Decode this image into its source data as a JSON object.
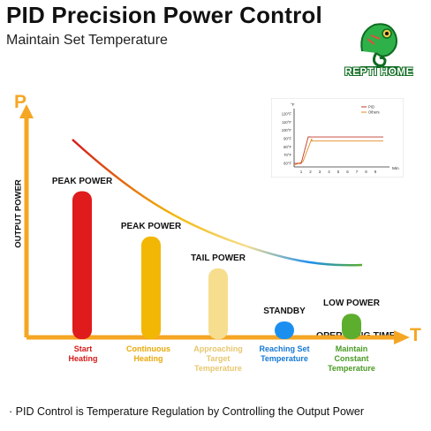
{
  "title": "PID Precision Power Control",
  "subtitle": "Maintain Set Temperature",
  "logo": {
    "text": "REPTI HOME",
    "icon": "chameleon-icon"
  },
  "axes": {
    "y_letter": "P",
    "x_letter": "T",
    "y_label": "OUTPUT POWER",
    "x_label": "OPERATING TIME"
  },
  "bars": [
    {
      "label": "PEAK POWER",
      "level": 0.85,
      "color": "#e01b1b"
    },
    {
      "label": "PEAK POWER",
      "level": 0.58,
      "color": "#f2b705"
    },
    {
      "label": "TAIL POWER",
      "level": 0.39,
      "color": "#f7de8e"
    },
    {
      "label": "STANDBY",
      "level": 0.06,
      "color": "#1b8ff0"
    },
    {
      "label": "LOW POWER",
      "level": 0.12,
      "color": "#5dae2f"
    }
  ],
  "stages": [
    {
      "lines": [
        "Start",
        "Heating"
      ],
      "color": "#d41a1a"
    },
    {
      "lines": [
        "Continuous",
        "Heating"
      ],
      "color": "#e8a90a"
    },
    {
      "lines": [
        "Approaching",
        "Target",
        "Temperature"
      ],
      "color": "#e6c66e"
    },
    {
      "lines": [
        "Reaching Set",
        "Temperature"
      ],
      "color": "#1478d4"
    },
    {
      "lines": [
        "Maintain",
        "Constant",
        "Temperature"
      ],
      "color": "#4a9a24"
    }
  ],
  "inset": {
    "unit": "°F",
    "legend": [
      "PID",
      "Others"
    ],
    "y_ticks": [
      "120°F",
      "110°F",
      "100°F",
      "90°F",
      "80°F",
      "70°F",
      "60°F"
    ],
    "x_ticks": [
      "1",
      "2",
      "3",
      "4",
      "5",
      "6",
      "7",
      "8",
      "9"
    ],
    "x_unit": "Min",
    "colors": {
      "pid": "#c0392b",
      "others": "#e08a1e"
    }
  },
  "footer": "· PID Control is Temperature Regulation by Controlling the Output Power"
}
